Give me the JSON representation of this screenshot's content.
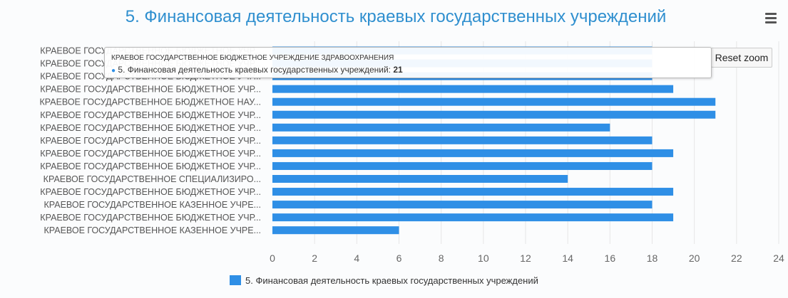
{
  "title": "5. Финансовая деятельность краевых государственных учреждений",
  "reset_zoom_label": "Reset zoom",
  "menu_icon": "hamburger-menu-icon",
  "tooltip": {
    "header": "КРАЕВОЕ ГОСУДАРСТВЕННОЕ БЮДЖЕТНОЕ УЧРЕЖДЕНИЕ ЗДРАВООХРАНЕНИЯ",
    "series_label": "5. Финансовая деятельность краевых государственных учреждений: ",
    "value": "21"
  },
  "colors": {
    "bar": "#2f8fe6",
    "title": "#2f8fcf",
    "grid": "#e6e6e6"
  },
  "chart_data": {
    "type": "bar",
    "orientation": "horizontal",
    "title": "5. Финансовая деятельность краевых государственных учреждений",
    "xlim": [
      0,
      24
    ],
    "x_ticks": [
      0,
      2,
      4,
      6,
      8,
      10,
      12,
      14,
      16,
      18,
      20,
      22,
      24
    ],
    "grid": true,
    "legend": "bottom-center",
    "categories": [
      "КРАЕВОЕ ГОСУДАРСТВЕННОЕ БЮДЖЕТНОЕ УЧР...",
      "КРАЕВОЕ ГОСУДАРСТВЕННОЕ БЮДЖЕТНОЕ УЧР...",
      "КРАЕВОЕ ГОСУДАРСТВЕННОЕ БЮДЖЕТНОЕ УЧР...",
      "КРАЕВОЕ ГОСУДАРСТВЕННОЕ БЮДЖЕТНОЕ УЧР...",
      "КРАЕВОЕ ГОСУДАРСТВЕННОЕ БЮДЖЕТНОЕ НАУ...",
      "КРАЕВОЕ ГОСУДАРСТВЕННОЕ БЮДЖЕТНОЕ УЧР...",
      "КРАЕВОЕ ГОСУДАРСТВЕННОЕ БЮДЖЕТНОЕ УЧР...",
      "КРАЕВОЕ ГОСУДАРСТВЕННОЕ БЮДЖЕТНОЕ УЧР...",
      "КРАЕВОЕ ГОСУДАРСТВЕННОЕ БЮДЖЕТНОЕ УЧР...",
      "КРАЕВОЕ ГОСУДАРСТВЕННОЕ БЮДЖЕТНОЕ УЧР...",
      "КРАЕВОЕ ГОСУДАРСТВЕННОЕ СПЕЦИАЛИЗИРО...",
      "КРАЕВОЕ ГОСУДАРСТВЕННОЕ БЮДЖЕТНОЕ УЧР...",
      "КРАЕВОЕ ГОСУДАРСТВЕННОЕ КАЗЕННОЕ УЧРЕ...",
      "КРАЕВОЕ ГОСУДАРСТВЕННОЕ БЮДЖЕТНОЕ УЧР...",
      "КРАЕВОЕ ГОСУДАРСТВЕННОЕ КАЗЕННОЕ УЧРЕ..."
    ],
    "series": [
      {
        "name": "5. Финансовая деятельность краевых государственных учреждений",
        "values": [
          18,
          18,
          18,
          19,
          21,
          21,
          16,
          18,
          19,
          18,
          14,
          19,
          18,
          19,
          6
        ]
      }
    ]
  }
}
